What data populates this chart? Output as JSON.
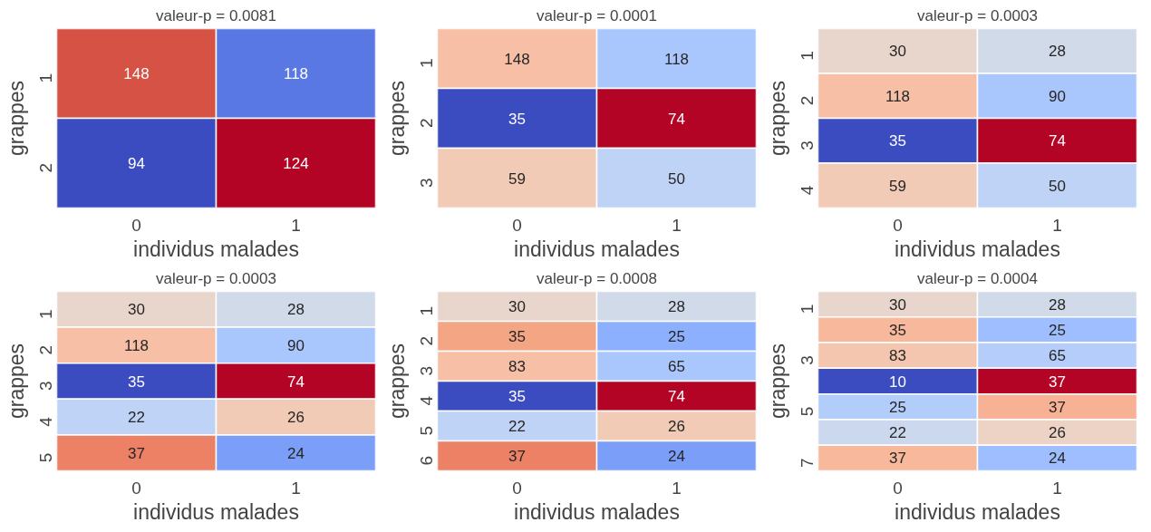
{
  "chart_data": [
    {
      "type": "heatmap",
      "title": "valeur-p = 0.0081",
      "xlabel": "individus malades",
      "ylabel": "grappes",
      "categories": [
        "0",
        "1"
      ],
      "y_categories": [
        "1",
        "2"
      ],
      "cells": [
        [
          148,
          118
        ],
        [
          94,
          124
        ]
      ],
      "colors": [
        [
          "#d65244",
          "#5a78e4"
        ],
        [
          "#3b4cc0",
          "#b40426"
        ]
      ],
      "data_labels": true
    },
    {
      "type": "heatmap",
      "title": "valeur-p = 0.0001",
      "xlabel": "individus malades",
      "ylabel": "grappes",
      "categories": [
        "0",
        "1"
      ],
      "y_categories": [
        "1",
        "2",
        "3"
      ],
      "cells": [
        [
          148,
          118
        ],
        [
          35,
          74
        ],
        [
          59,
          50
        ]
      ],
      "colors": [
        [
          "#f6bfa6",
          "#aac7fd"
        ],
        [
          "#3b4cc0",
          "#b40426"
        ],
        [
          "#f2cbb7",
          "#bfd3f6"
        ]
      ],
      "data_labels": true
    },
    {
      "type": "heatmap",
      "title": "valeur-p = 0.0003",
      "xlabel": "individus malades",
      "ylabel": "grappes",
      "categories": [
        "0",
        "1"
      ],
      "y_categories": [
        "1",
        "2",
        "3",
        "4"
      ],
      "cells": [
        [
          30,
          28
        ],
        [
          118,
          90
        ],
        [
          35,
          74
        ],
        [
          59,
          50
        ]
      ],
      "colors": [
        [
          "#e8d6cc",
          "#d0dae9"
        ],
        [
          "#f6bfa6",
          "#aac7fd"
        ],
        [
          "#3b4cc0",
          "#b40426"
        ],
        [
          "#f2cbb7",
          "#bfd3f6"
        ]
      ],
      "data_labels": true
    },
    {
      "type": "heatmap",
      "title": "valeur-p = 0.0003",
      "xlabel": "individus malades",
      "ylabel": "grappes",
      "categories": [
        "0",
        "1"
      ],
      "y_categories": [
        "1",
        "2",
        "3",
        "4",
        "5"
      ],
      "cells": [
        [
          30,
          28
        ],
        [
          118,
          90
        ],
        [
          35,
          74
        ],
        [
          22,
          26
        ],
        [
          37,
          24
        ]
      ],
      "colors": [
        [
          "#e8d6cc",
          "#d0dae9"
        ],
        [
          "#f6bfa6",
          "#aac7fd"
        ],
        [
          "#3b4cc0",
          "#b40426"
        ],
        [
          "#bfd3f6",
          "#f2cbb7"
        ],
        [
          "#ec8165",
          "#7b9ff9"
        ]
      ],
      "data_labels": true
    },
    {
      "type": "heatmap",
      "title": "valeur-p = 0.0008",
      "xlabel": "individus malades",
      "ylabel": "grappes",
      "categories": [
        "0",
        "1"
      ],
      "y_categories": [
        "1",
        "2",
        "3",
        "4",
        "5",
        "6"
      ],
      "cells": [
        [
          30,
          28
        ],
        [
          35,
          25
        ],
        [
          83,
          65
        ],
        [
          35,
          74
        ],
        [
          22,
          26
        ],
        [
          37,
          24
        ]
      ],
      "colors": [
        [
          "#e8d6cc",
          "#d0dae9"
        ],
        [
          "#f4a584",
          "#8db0fe"
        ],
        [
          "#f6bfa6",
          "#aac7fd"
        ],
        [
          "#3b4cc0",
          "#b40426"
        ],
        [
          "#bfd3f6",
          "#f2cbb7"
        ],
        [
          "#ec8165",
          "#7b9ff9"
        ]
      ],
      "data_labels": true
    },
    {
      "type": "heatmap",
      "title": "valeur-p = 0.0004",
      "xlabel": "individus malades",
      "ylabel": "grappes",
      "categories": [
        "0",
        "1"
      ],
      "y_categories": [
        "1",
        null,
        "3",
        null,
        "5",
        null,
        "7"
      ],
      "cells": [
        [
          30,
          28
        ],
        [
          35,
          25
        ],
        [
          83,
          65
        ],
        [
          10,
          37
        ],
        [
          25,
          37
        ],
        [
          22,
          26
        ],
        [
          37,
          24
        ]
      ],
      "colors": [
        [
          "#e8d6cc",
          "#d0dae9"
        ],
        [
          "#f7b89c",
          "#9ebeff"
        ],
        [
          "#f4c6af",
          "#b5cdfa"
        ],
        [
          "#3b4cc0",
          "#b40426"
        ],
        [
          "#b3cdfb",
          "#f7b194"
        ],
        [
          "#cbd8ee",
          "#ecd3c5"
        ],
        [
          "#f7b89c",
          "#9ebeff"
        ]
      ],
      "data_labels": true
    }
  ]
}
